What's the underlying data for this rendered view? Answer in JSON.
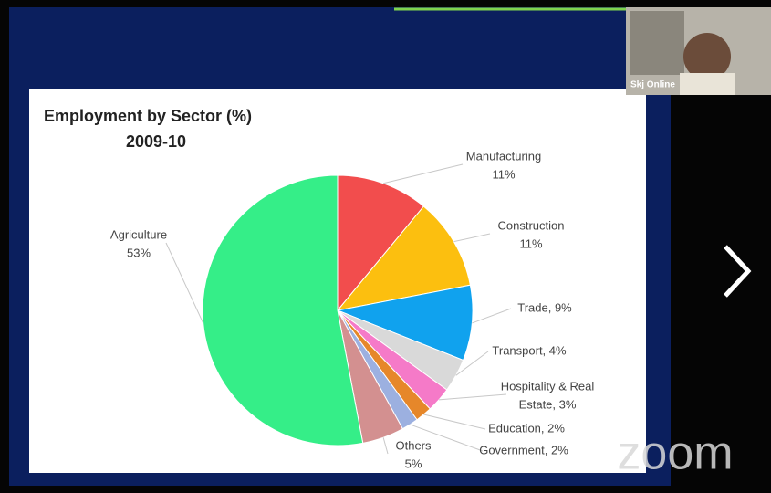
{
  "chart_data": {
    "type": "pie",
    "title": "Employment by Sector (%)",
    "subtitle": "2009-10",
    "labels": [
      [
        "Manufacturing",
        "11%"
      ],
      [
        "Construction",
        "11%"
      ],
      [
        "Trade, 9%"
      ],
      [
        "Transport, 4%"
      ],
      [
        "Hospitality & Real",
        "Estate, 3%"
      ],
      [
        "Education, 2%"
      ],
      [
        "Government, 2%"
      ],
      [
        "Others",
        "5%"
      ],
      [
        "Agriculture",
        "53%"
      ]
    ],
    "values": [
      11,
      11,
      9,
      4,
      3,
      2,
      2,
      5,
      53
    ],
    "colors": [
      "#f24d4d",
      "#fcbf0f",
      "#10a2ee",
      "#d9d9d9",
      "#f57ac8",
      "#e6872a",
      "#9cb0e0",
      "#d39090",
      "#35ee88"
    ]
  },
  "participant": "Skj Online",
  "watermark": "zoom"
}
